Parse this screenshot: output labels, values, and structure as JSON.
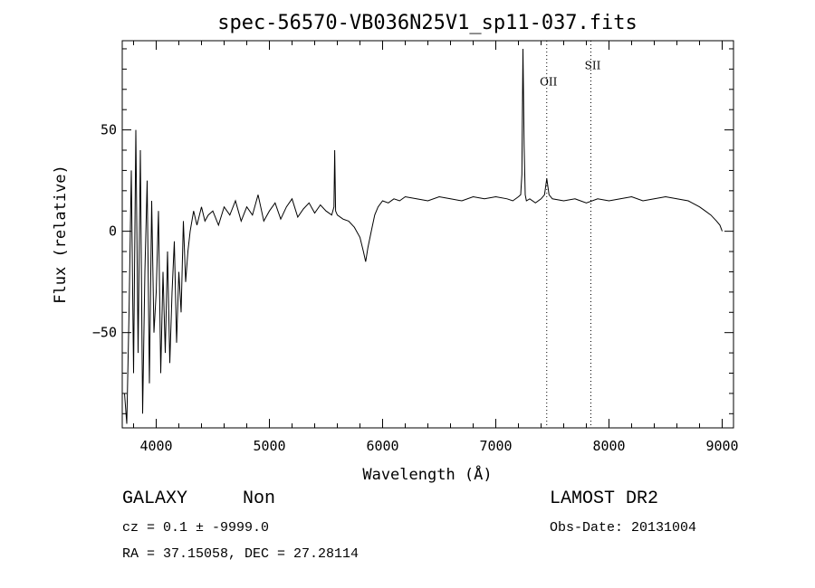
{
  "chart_data": {
    "type": "line",
    "title": "spec-56570-VB036N25V1_sp11-037.fits",
    "xlabel": "Wavelength (Å)",
    "ylabel": "Flux (relative)",
    "xlim": [
      3700,
      9100
    ],
    "ylim": [
      -97,
      94
    ],
    "x_ticks": [
      4000,
      5000,
      6000,
      7000,
      8000,
      9000
    ],
    "x_tick_labels": [
      "4000",
      "5000",
      "6000",
      "7000",
      "8000",
      "9000"
    ],
    "y_ticks": [
      -50,
      0,
      50
    ],
    "y_tick_labels": [
      "−50",
      "0",
      "50"
    ],
    "series": [
      {
        "x": [
          3720,
          3740,
          3760,
          3780,
          3800,
          3820,
          3840,
          3860,
          3880,
          3900,
          3920,
          3940,
          3960,
          3980,
          4000,
          4020,
          4040,
          4060,
          4080,
          4100,
          4120,
          4140,
          4160,
          4180,
          4200,
          4220,
          4240,
          4260,
          4280,
          4300,
          4330,
          4360,
          4400,
          4430,
          4460,
          4500,
          4550,
          4600,
          4650,
          4700,
          4750,
          4800,
          4850,
          4900,
          4950,
          5000,
          5050,
          5100,
          5150,
          5200,
          5250,
          5300,
          5350,
          5400,
          5450,
          5500,
          5550,
          5570,
          5577,
          5585,
          5600,
          5650,
          5700,
          5750,
          5800,
          5830,
          5850,
          5870,
          5900,
          5930,
          5960,
          6000,
          6050,
          6100,
          6150,
          6200,
          6300,
          6400,
          6500,
          6600,
          6700,
          6800,
          6900,
          7000,
          7100,
          7150,
          7200,
          7220,
          7230,
          7240,
          7250,
          7260,
          7270,
          7300,
          7350,
          7400,
          7430,
          7450,
          7470,
          7500,
          7600,
          7700,
          7800,
          7900,
          8000,
          8100,
          8200,
          8300,
          8400,
          8500,
          8600,
          8700,
          8800,
          8850,
          8900,
          8950,
          8980,
          9000
        ],
        "y": [
          -80,
          -95,
          -40,
          30,
          -70,
          50,
          -60,
          40,
          -90,
          -20,
          25,
          -75,
          15,
          -50,
          -30,
          10,
          -70,
          -20,
          -60,
          -10,
          -65,
          -30,
          -5,
          -55,
          -20,
          -40,
          5,
          -25,
          -10,
          0,
          10,
          3,
          12,
          5,
          8,
          10,
          3,
          12,
          8,
          15,
          5,
          12,
          8,
          18,
          5,
          10,
          14,
          6,
          12,
          16,
          7,
          11,
          14,
          9,
          13,
          10,
          8,
          12,
          40,
          10,
          8,
          6,
          5,
          2,
          -3,
          -10,
          -15,
          -8,
          0,
          8,
          12,
          15,
          14,
          16,
          15,
          17,
          16,
          15,
          17,
          16,
          15,
          17,
          16,
          17,
          16,
          15,
          17,
          18,
          28,
          90,
          42,
          18,
          15,
          16,
          14,
          16,
          18,
          26,
          18,
          16,
          15,
          16,
          14,
          16,
          15,
          16,
          17,
          15,
          16,
          17,
          16,
          15,
          12,
          10,
          8,
          5,
          3,
          0
        ]
      }
    ],
    "annotations": [
      {
        "label": "OII",
        "x": 7450,
        "y": 72
      },
      {
        "label": "SII",
        "x": 7840,
        "y": 80
      }
    ],
    "line_markers_x": [
      7450,
      7840
    ],
    "grid": false,
    "legend": "none"
  },
  "info": {
    "object_class": "GALAXY",
    "subclass": "Non",
    "survey": "LAMOST DR2",
    "redshift_line": "cz = 0.1 ± -9999.0",
    "obs_date": "Obs-Date: 20131004",
    "coords": "RA =  37.15058, DEC =  27.28114"
  }
}
